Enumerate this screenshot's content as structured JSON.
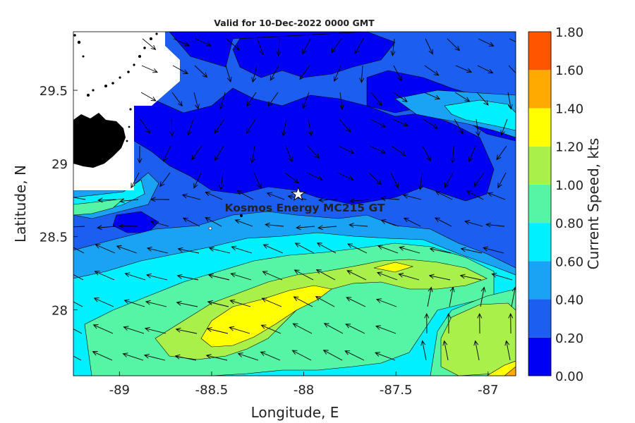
{
  "title": "Valid for 10-Dec-2022 0000 GMT",
  "site_label": "Kosmos Energy MC215 GT",
  "axes": {
    "xlabel": "Longitude, E",
    "ylabel": "Latitude, N",
    "xlim": [
      -89.25,
      -86.85
    ],
    "ylim": [
      27.55,
      29.9
    ],
    "xticks": [
      -89,
      -88.5,
      -88,
      -87.5,
      -87
    ],
    "xtick_labels": [
      "-89",
      "-88.5",
      "-88",
      "-87.5",
      "-87"
    ],
    "yticks": [
      28,
      28.5,
      29,
      29.5
    ],
    "ytick_labels": [
      "28",
      "28.5",
      "29",
      "29.5"
    ]
  },
  "colorbar": {
    "label": "Current Speed, kts",
    "levels": [
      "0.00",
      "0.20",
      "0.40",
      "0.60",
      "0.80",
      "1.00",
      "1.20",
      "1.40",
      "1.60",
      "1.80"
    ],
    "colors": [
      "#0000f5",
      "#1b5ef0",
      "#1aa3f5",
      "#00f0ff",
      "#55f5a5",
      "#aaf04a",
      "#ffff00",
      "#ffaa00",
      "#ff5500"
    ]
  },
  "map": {
    "site": {
      "lon": -88.03,
      "lat": 28.79
    },
    "land_fill": "#ffffff",
    "coast_fill": "#000000",
    "marker_fill": "#ffffff",
    "marker_stroke": "#000000"
  },
  "legend_icons": [
    "star-marker-icon",
    "current-vector-arrow-icon"
  ]
}
